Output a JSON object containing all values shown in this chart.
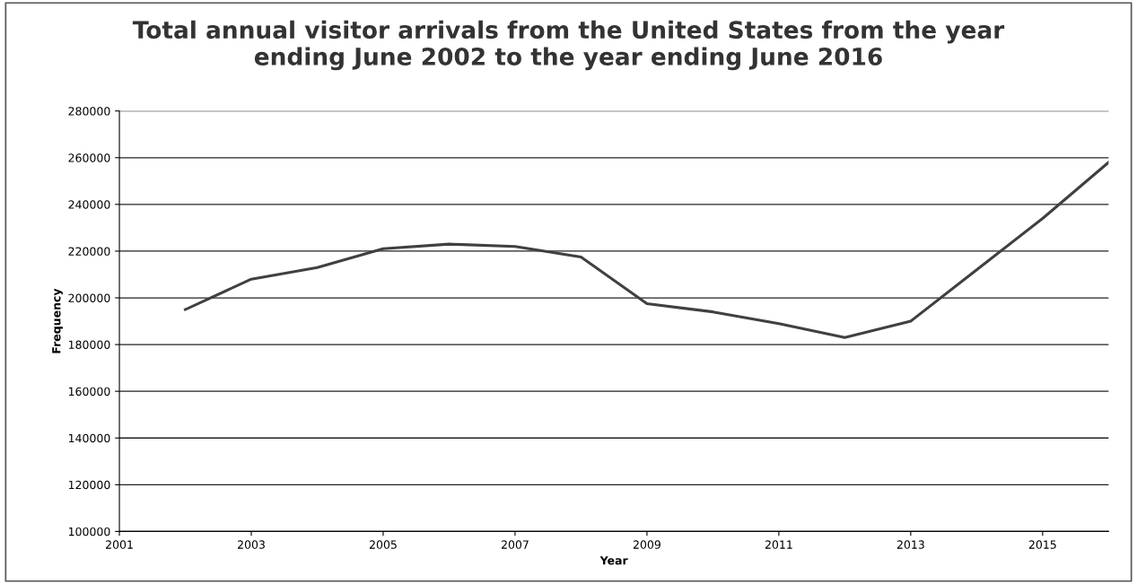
{
  "chart_data": {
    "type": "line",
    "title": "Total annual visitor arrivals from the United States from the year\nending June 2002 to the year ending June 2016",
    "xlabel": "Year",
    "ylabel": "Frequency",
    "x": [
      2002,
      2003,
      2004,
      2005,
      2006,
      2007,
      2008,
      2009,
      2010,
      2011,
      2012,
      2013,
      2014,
      2015,
      2016
    ],
    "series": [
      {
        "color": "#404040",
        "values": [
          195000,
          208000,
          213000,
          221000,
          223000,
          222000,
          217500,
          197500,
          194000,
          189000,
          183000,
          190000,
          212000,
          234000,
          258000
        ]
      }
    ],
    "xlim": [
      2001,
      2016
    ],
    "xticks": [
      2001,
      2003,
      2005,
      2007,
      2009,
      2011,
      2013,
      2015
    ],
    "ylim": [
      100000,
      280000
    ],
    "yticks": [
      100000,
      120000,
      140000,
      160000,
      180000,
      200000,
      220000,
      240000,
      260000,
      280000
    ],
    "grid": "y",
    "legend": false,
    "marker": "none",
    "line_style": "solid"
  }
}
